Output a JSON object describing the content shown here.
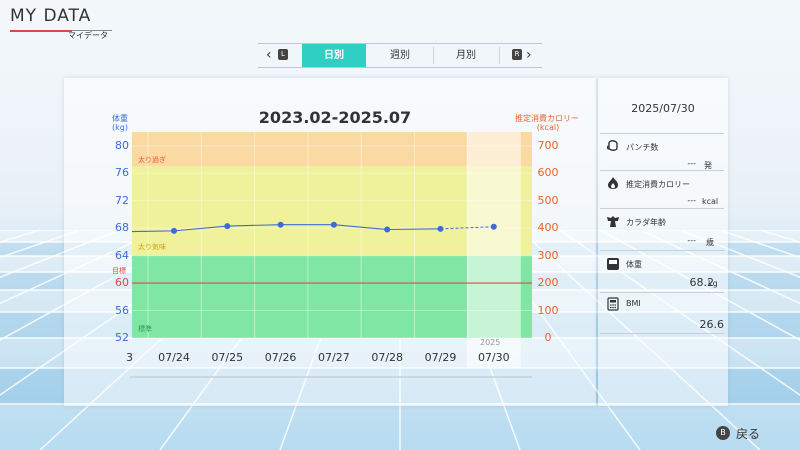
{
  "app": {
    "title": "MY DATA",
    "subtitle": "マイデータ"
  },
  "tabs": {
    "left_bumper": "L",
    "right_bumper": "R",
    "items": [
      {
        "label": "日別",
        "active": true
      },
      {
        "label": "週別",
        "active": false
      },
      {
        "label": "月別",
        "active": false
      }
    ]
  },
  "chart": {
    "title": "2023.02-2025.07",
    "left_axis_name": "体重",
    "left_axis_unit": "(kg)",
    "right_axis_name": "推定消費カロリー",
    "right_axis_unit": "(kcal)",
    "zones": {
      "over": "太り過ぎ",
      "slightly": "太り気味",
      "target": "目標",
      "standard": "標準"
    },
    "year_label": "2025",
    "x_partial_label": "3",
    "colors": {
      "weight": "#3c6bd9",
      "calorie": "#e8622a",
      "over": "#fbd9a3",
      "slightly": "#eff29a",
      "standard": "#80e6a3",
      "target_line": "#e04848",
      "highlight": "#f4f4ee"
    }
  },
  "chart_data": {
    "type": "line",
    "x": [
      "07/24",
      "07/25",
      "07/26",
      "07/27",
      "07/28",
      "07/29",
      "07/30"
    ],
    "series": [
      {
        "name": "体重",
        "values": [
          67.6,
          68.3,
          68.5,
          68.5,
          67.8,
          67.9,
          68.2
        ]
      }
    ],
    "ylim": [
      52,
      82
    ],
    "yticks": [
      52,
      56,
      60,
      64,
      68,
      72,
      76,
      80
    ],
    "y2lim": [
      0,
      750
    ],
    "y2ticks": [
      0,
      100,
      200,
      300,
      400,
      500,
      600,
      700
    ],
    "target_weight": 60,
    "zone_bounds": {
      "standard_top": 64,
      "slightly_top": 77,
      "top": 82
    }
  },
  "side": {
    "date": "2025/07/30",
    "punch": {
      "label": "パンチ数",
      "value": "---",
      "unit": "発"
    },
    "calorie": {
      "label": "推定消費カロリー",
      "value": "---",
      "unit": "kcal"
    },
    "body_age": {
      "label": "カラダ年齢",
      "value": "---",
      "unit": "歳"
    },
    "weight": {
      "label": "体重",
      "value": "68.2",
      "unit": "kg"
    },
    "bmi": {
      "label": "BMI",
      "value": "26.6",
      "unit": ""
    }
  },
  "footer": {
    "button": "B",
    "back_label": "戻る"
  }
}
